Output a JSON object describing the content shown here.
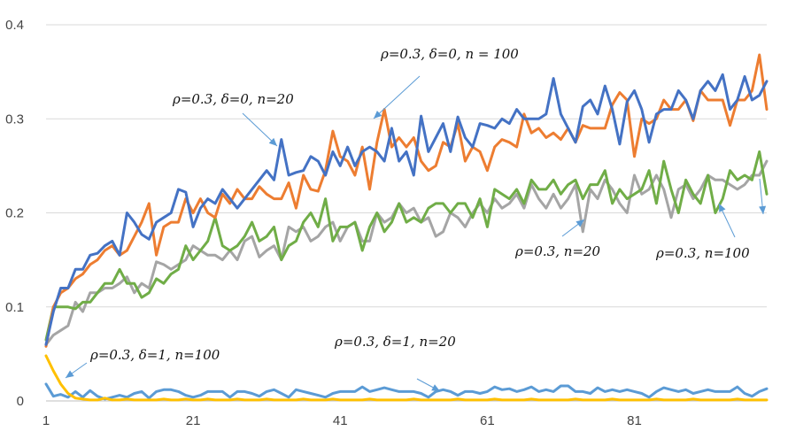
{
  "chart_data": {
    "type": "line",
    "title": "",
    "xlabel": "",
    "ylabel": "",
    "xlim": [
      1,
      99
    ],
    "ylim": [
      0,
      0.4
    ],
    "x_ticks": [
      "1",
      "21",
      "41",
      "61",
      "81"
    ],
    "y_ticks": [
      "0",
      "0.1",
      "0.2",
      "0.3",
      "0.4"
    ],
    "grid": "horizontal",
    "legend": "none",
    "series": [
      {
        "color": "#4472c4",
        "values": [
          0.06,
          0.095,
          0.12,
          0.12,
          0.14,
          0.14,
          0.155,
          0.157,
          0.165,
          0.17,
          0.155,
          0.2,
          0.19,
          0.177,
          0.172,
          0.19,
          0.195,
          0.2,
          0.225,
          0.222,
          0.185,
          0.205,
          0.215,
          0.21,
          0.225,
          0.215,
          0.205,
          0.215,
          0.225,
          0.235,
          0.245,
          0.235,
          0.278,
          0.24,
          0.243,
          0.245,
          0.26,
          0.255,
          0.24,
          0.265,
          0.25,
          0.27,
          0.25,
          0.265,
          0.27,
          0.265,
          0.255,
          0.29,
          0.255,
          0.265,
          0.24,
          0.303,
          0.265,
          0.28,
          0.295,
          0.265,
          0.302,
          0.28,
          0.27,
          0.295,
          0.293,
          0.29,
          0.3,
          0.295,
          0.31,
          0.3,
          0.3,
          0.3,
          0.305,
          0.343,
          0.305,
          0.29,
          0.275,
          0.313,
          0.32,
          0.305,
          0.335,
          0.31,
          0.273,
          0.318,
          0.33,
          0.31,
          0.275,
          0.305,
          0.31,
          0.31,
          0.33,
          0.32,
          0.3,
          0.33,
          0.34,
          0.33,
          0.347,
          0.31,
          0.32,
          0.345,
          0.32,
          0.325,
          0.34
        ]
      },
      {
        "color": "#ed7d31",
        "values": [
          0.058,
          0.1,
          0.115,
          0.12,
          0.13,
          0.135,
          0.145,
          0.15,
          0.16,
          0.165,
          0.155,
          0.16,
          0.175,
          0.19,
          0.21,
          0.155,
          0.185,
          0.19,
          0.19,
          0.215,
          0.2,
          0.215,
          0.2,
          0.195,
          0.22,
          0.21,
          0.225,
          0.215,
          0.215,
          0.228,
          0.22,
          0.215,
          0.215,
          0.232,
          0.205,
          0.24,
          0.225,
          0.223,
          0.245,
          0.287,
          0.26,
          0.255,
          0.24,
          0.27,
          0.225,
          0.275,
          0.31,
          0.27,
          0.28,
          0.27,
          0.28,
          0.255,
          0.245,
          0.25,
          0.275,
          0.27,
          0.295,
          0.255,
          0.27,
          0.265,
          0.245,
          0.27,
          0.278,
          0.275,
          0.27,
          0.305,
          0.285,
          0.29,
          0.28,
          0.285,
          0.278,
          0.29,
          0.275,
          0.293,
          0.29,
          0.29,
          0.29,
          0.315,
          0.328,
          0.32,
          0.26,
          0.3,
          0.295,
          0.3,
          0.32,
          0.31,
          0.31,
          0.32,
          0.298,
          0.33,
          0.32,
          0.32,
          0.32,
          0.293,
          0.32,
          0.32,
          0.33,
          0.368,
          0.31
        ]
      },
      {
        "color": "#a5a5a5",
        "values": [
          0.06,
          0.07,
          0.075,
          0.08,
          0.105,
          0.095,
          0.115,
          0.115,
          0.12,
          0.12,
          0.125,
          0.132,
          0.115,
          0.125,
          0.12,
          0.148,
          0.145,
          0.14,
          0.145,
          0.15,
          0.165,
          0.16,
          0.155,
          0.155,
          0.15,
          0.16,
          0.15,
          0.17,
          0.175,
          0.153,
          0.16,
          0.165,
          0.15,
          0.185,
          0.18,
          0.185,
          0.17,
          0.175,
          0.185,
          0.19,
          0.17,
          0.185,
          0.19,
          0.17,
          0.17,
          0.2,
          0.19,
          0.195,
          0.21,
          0.2,
          0.205,
          0.19,
          0.195,
          0.175,
          0.18,
          0.2,
          0.195,
          0.185,
          0.2,
          0.21,
          0.2,
          0.215,
          0.205,
          0.21,
          0.22,
          0.205,
          0.23,
          0.215,
          0.205,
          0.22,
          0.205,
          0.215,
          0.23,
          0.18,
          0.225,
          0.215,
          0.235,
          0.225,
          0.21,
          0.2,
          0.24,
          0.22,
          0.225,
          0.24,
          0.225,
          0.195,
          0.225,
          0.23,
          0.215,
          0.225,
          0.24,
          0.235,
          0.235,
          0.23,
          0.225,
          0.23,
          0.24,
          0.24,
          0.255
        ]
      },
      {
        "color": "#70ad47",
        "values": [
          0.065,
          0.1,
          0.1,
          0.1,
          0.098,
          0.105,
          0.105,
          0.115,
          0.125,
          0.125,
          0.14,
          0.125,
          0.125,
          0.11,
          0.115,
          0.13,
          0.125,
          0.135,
          0.14,
          0.165,
          0.15,
          0.16,
          0.17,
          0.195,
          0.165,
          0.16,
          0.165,
          0.175,
          0.19,
          0.17,
          0.175,
          0.185,
          0.15,
          0.165,
          0.17,
          0.19,
          0.2,
          0.185,
          0.215,
          0.17,
          0.185,
          0.185,
          0.19,
          0.16,
          0.185,
          0.2,
          0.18,
          0.19,
          0.21,
          0.19,
          0.195,
          0.19,
          0.205,
          0.21,
          0.21,
          0.2,
          0.21,
          0.21,
          0.195,
          0.215,
          0.185,
          0.225,
          0.22,
          0.215,
          0.225,
          0.21,
          0.235,
          0.225,
          0.225,
          0.235,
          0.22,
          0.23,
          0.235,
          0.215,
          0.23,
          0.23,
          0.245,
          0.21,
          0.225,
          0.215,
          0.22,
          0.225,
          0.245,
          0.21,
          0.255,
          0.225,
          0.2,
          0.235,
          0.22,
          0.21,
          0.24,
          0.2,
          0.215,
          0.245,
          0.235,
          0.24,
          0.235,
          0.265,
          0.22
        ]
      },
      {
        "color": "#5b9bd5",
        "values": [
          0.018,
          0.005,
          0.007,
          0.004,
          0.01,
          0.004,
          0.011,
          0.005,
          0.002,
          0.004,
          0.006,
          0.004,
          0.008,
          0.01,
          0.003,
          0.01,
          0.012,
          0.012,
          0.01,
          0.006,
          0.004,
          0.006,
          0.01,
          0.01,
          0.01,
          0.004,
          0.01,
          0.01,
          0.008,
          0.005,
          0.01,
          0.012,
          0.008,
          0.004,
          0.012,
          0.01,
          0.008,
          0.006,
          0.004,
          0.008,
          0.01,
          0.01,
          0.01,
          0.015,
          0.01,
          0.012,
          0.014,
          0.012,
          0.01,
          0.01,
          0.01,
          0.008,
          0.004,
          0.01,
          0.012,
          0.01,
          0.006,
          0.01,
          0.01,
          0.008,
          0.01,
          0.015,
          0.012,
          0.013,
          0.01,
          0.012,
          0.015,
          0.01,
          0.012,
          0.01,
          0.016,
          0.016,
          0.01,
          0.01,
          0.008,
          0.014,
          0.01,
          0.012,
          0.01,
          0.012,
          0.01,
          0.008,
          0.004,
          0.01,
          0.014,
          0.012,
          0.01,
          0.012,
          0.008,
          0.01,
          0.012,
          0.01,
          0.01,
          0.01,
          0.015,
          0.008,
          0.005,
          0.01,
          0.013
        ]
      },
      {
        "color": "#ffc000",
        "values": [
          0.048,
          0.032,
          0.018,
          0.008,
          0.003,
          0.002,
          0.001,
          0.001,
          0.003,
          0.001,
          0.001,
          0.002,
          0.001,
          0.001,
          0.001,
          0.001,
          0.002,
          0.001,
          0.001,
          0.002,
          0.001,
          0.001,
          0.002,
          0.001,
          0.001,
          0.001,
          0.002,
          0.001,
          0.001,
          0.001,
          0.002,
          0.001,
          0.001,
          0.001,
          0.001,
          0.002,
          0.001,
          0.001,
          0.001,
          0.002,
          0.001,
          0.001,
          0.001,
          0.001,
          0.002,
          0.001,
          0.001,
          0.001,
          0.001,
          0.001,
          0.002,
          0.001,
          0.001,
          0.001,
          0.001,
          0.001,
          0.002,
          0.001,
          0.001,
          0.001,
          0.001,
          0.002,
          0.001,
          0.001,
          0.001,
          0.001,
          0.002,
          0.001,
          0.001,
          0.001,
          0.001,
          0.001,
          0.002,
          0.001,
          0.001,
          0.001,
          0.001,
          0.002,
          0.001,
          0.001,
          0.001,
          0.001,
          0.001,
          0.002,
          0.001,
          0.001,
          0.001,
          0.001,
          0.002,
          0.001,
          0.001,
          0.001,
          0.001,
          0.001,
          0.002,
          0.001,
          0.001,
          0.001,
          0.001
        ]
      }
    ],
    "annotations": [
      {
        "text": "ρ=0.3, δ=0, n = 100"
      },
      {
        "text": "ρ=0.3, δ=0, n=20"
      },
      {
        "text": "ρ=0.3, n=20"
      },
      {
        "text": "ρ=0.3, n=100"
      },
      {
        "text": "ρ=0.3, δ=1, n=20"
      },
      {
        "text": "ρ=0.3, δ=1, n=100"
      }
    ]
  }
}
